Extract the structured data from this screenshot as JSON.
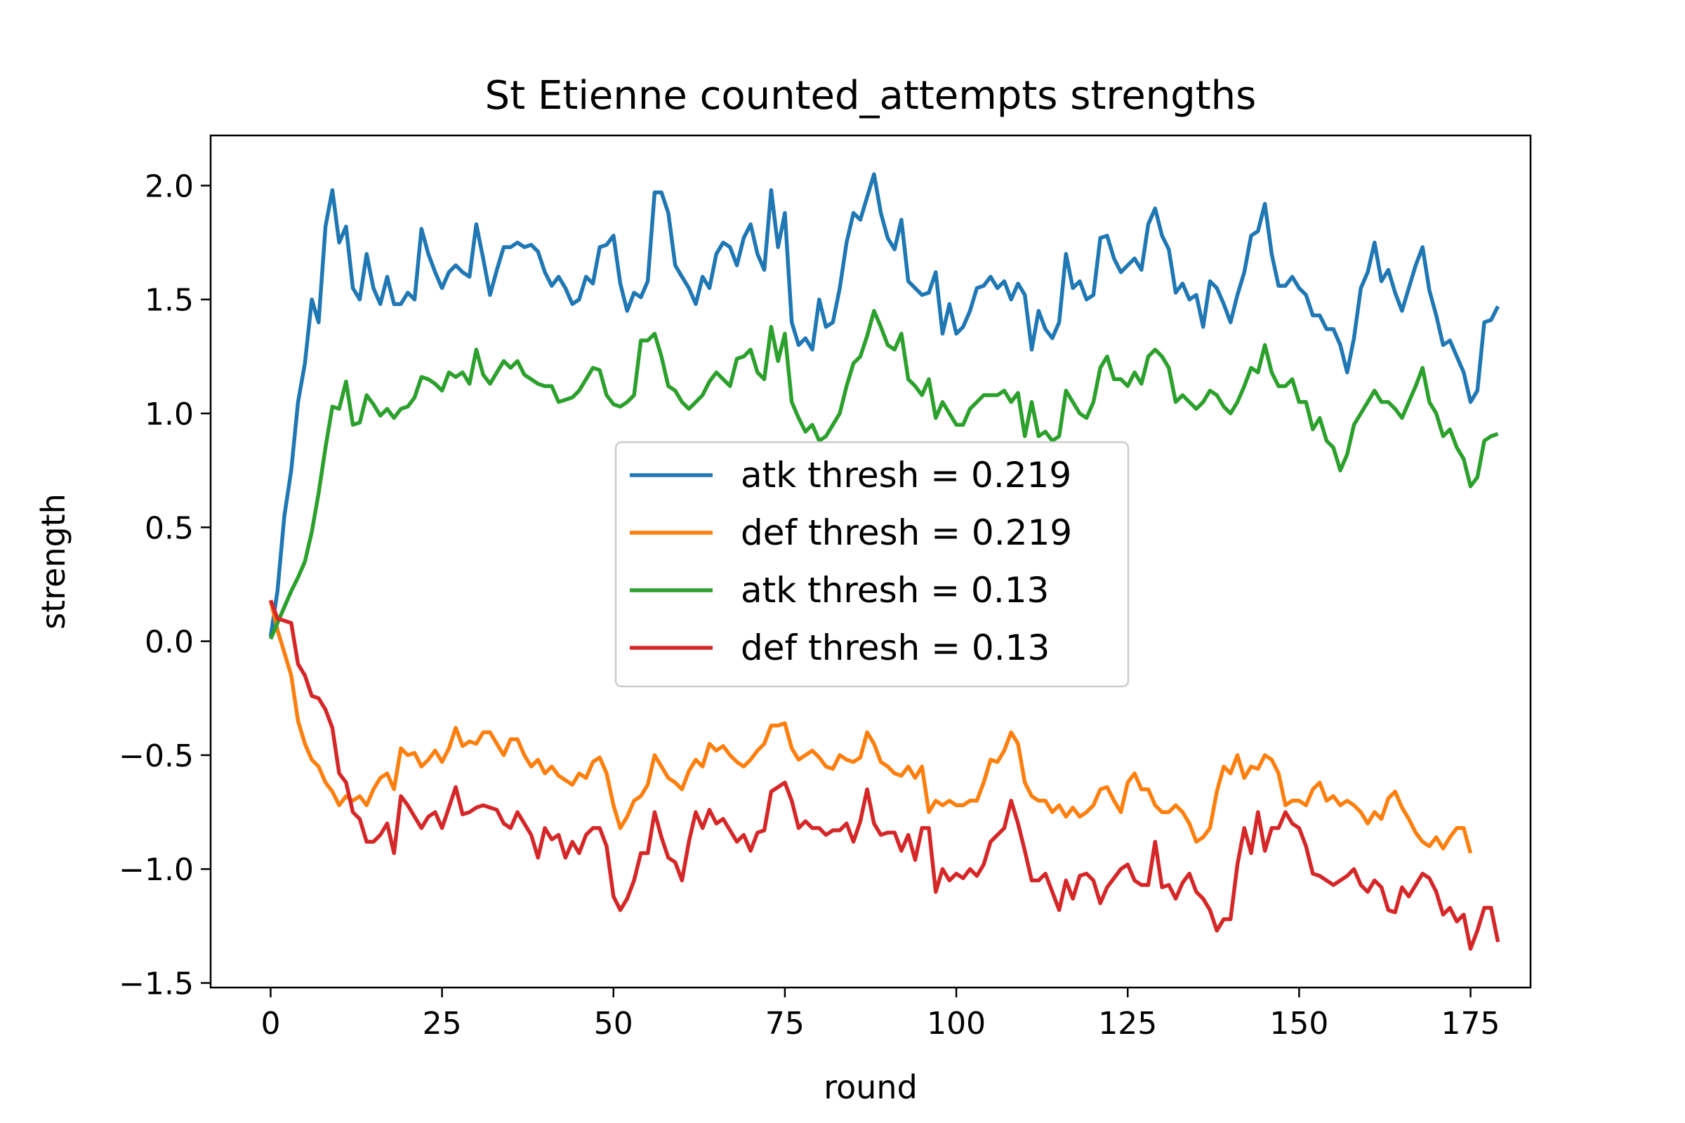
{
  "chart_data": {
    "type": "line",
    "title": "St Etienne counted_attempts strengths",
    "xlabel": "round",
    "ylabel": "strength",
    "xlim": [
      -8.75,
      183.75
    ],
    "ylim": [
      -1.52,
      2.22
    ],
    "xticks": [
      0,
      25,
      50,
      75,
      100,
      125,
      150,
      175
    ],
    "xtick_labels": [
      "0",
      "25",
      "50",
      "75",
      "100",
      "125",
      "150",
      "175"
    ],
    "yticks": [
      -1.5,
      -1.0,
      -0.5,
      0.0,
      0.5,
      1.0,
      1.5,
      2.0
    ],
    "ytick_labels": [
      "−1.5",
      "−1.0",
      "−0.5",
      "0.0",
      "0.5",
      "1.0",
      "1.5",
      "2.0"
    ],
    "grid": false,
    "legend_position": "center",
    "series": [
      {
        "name": "atk thresh = 0.219",
        "color": "#1f77b4",
        "x_start": 0,
        "x_step": 1,
        "y": [
          0.02,
          0.22,
          0.55,
          0.75,
          1.05,
          1.22,
          1.5,
          1.4,
          1.82,
          1.98,
          1.75,
          1.82,
          1.55,
          1.5,
          1.7,
          1.55,
          1.48,
          1.6,
          1.48,
          1.48,
          1.53,
          1.5,
          1.81,
          1.7,
          1.62,
          1.55,
          1.62,
          1.65,
          1.62,
          1.6,
          1.83,
          1.68,
          1.52,
          1.63,
          1.73,
          1.73,
          1.75,
          1.73,
          1.74,
          1.71,
          1.62,
          1.56,
          1.6,
          1.55,
          1.48,
          1.5,
          1.6,
          1.57,
          1.73,
          1.74,
          1.78,
          1.57,
          1.45,
          1.53,
          1.51,
          1.58,
          1.97,
          1.97,
          1.88,
          1.65,
          1.6,
          1.55,
          1.48,
          1.6,
          1.55,
          1.7,
          1.75,
          1.73,
          1.65,
          1.77,
          1.83,
          1.7,
          1.63,
          1.98,
          1.73,
          1.88,
          1.4,
          1.3,
          1.33,
          1.28,
          1.5,
          1.38,
          1.4,
          1.55,
          1.75,
          1.88,
          1.85,
          1.95,
          2.05,
          1.88,
          1.77,
          1.72,
          1.85,
          1.58,
          1.55,
          1.52,
          1.53,
          1.62,
          1.35,
          1.48,
          1.35,
          1.38,
          1.45,
          1.55,
          1.56,
          1.6,
          1.55,
          1.58,
          1.5,
          1.57,
          1.52,
          1.28,
          1.45,
          1.37,
          1.33,
          1.4,
          1.7,
          1.55,
          1.58,
          1.5,
          1.52,
          1.77,
          1.78,
          1.68,
          1.62,
          1.65,
          1.68,
          1.63,
          1.83,
          1.9,
          1.78,
          1.72,
          1.53,
          1.57,
          1.5,
          1.52,
          1.38,
          1.58,
          1.55,
          1.48,
          1.4,
          1.52,
          1.62,
          1.78,
          1.8,
          1.92,
          1.7,
          1.56,
          1.56,
          1.6,
          1.55,
          1.52,
          1.43,
          1.43,
          1.37,
          1.37,
          1.3,
          1.18,
          1.33,
          1.55,
          1.62,
          1.75,
          1.58,
          1.63,
          1.53,
          1.45,
          1.55,
          1.65,
          1.73,
          1.54,
          1.43,
          1.3,
          1.32,
          1.25,
          1.18,
          1.05,
          1.1,
          1.4,
          1.41,
          1.47
        ]
      },
      {
        "name": "def thresh = 0.219",
        "color": "#ff7f0e",
        "x_start": 0,
        "x_step": 1,
        "y": [
          0.18,
          0.05,
          -0.05,
          -0.15,
          -0.35,
          -0.45,
          -0.52,
          -0.55,
          -0.62,
          -0.66,
          -0.72,
          -0.68,
          -0.7,
          -0.68,
          -0.72,
          -0.65,
          -0.6,
          -0.58,
          -0.65,
          -0.47,
          -0.5,
          -0.49,
          -0.55,
          -0.52,
          -0.48,
          -0.53,
          -0.47,
          -0.38,
          -0.46,
          -0.44,
          -0.45,
          -0.4,
          -0.4,
          -0.45,
          -0.5,
          -0.43,
          -0.43,
          -0.5,
          -0.55,
          -0.52,
          -0.58,
          -0.55,
          -0.59,
          -0.61,
          -0.63,
          -0.58,
          -0.6,
          -0.53,
          -0.51,
          -0.58,
          -0.72,
          -0.82,
          -0.77,
          -0.7,
          -0.68,
          -0.63,
          -0.5,
          -0.55,
          -0.6,
          -0.62,
          -0.65,
          -0.57,
          -0.52,
          -0.55,
          -0.45,
          -0.48,
          -0.46,
          -0.5,
          -0.53,
          -0.55,
          -0.52,
          -0.48,
          -0.45,
          -0.37,
          -0.37,
          -0.36,
          -0.47,
          -0.52,
          -0.5,
          -0.48,
          -0.51,
          -0.55,
          -0.56,
          -0.5,
          -0.52,
          -0.53,
          -0.51,
          -0.4,
          -0.45,
          -0.53,
          -0.55,
          -0.58,
          -0.59,
          -0.55,
          -0.6,
          -0.55,
          -0.75,
          -0.7,
          -0.72,
          -0.7,
          -0.72,
          -0.72,
          -0.7,
          -0.7,
          -0.62,
          -0.52,
          -0.53,
          -0.48,
          -0.4,
          -0.45,
          -0.62,
          -0.68,
          -0.7,
          -0.7,
          -0.75,
          -0.72,
          -0.77,
          -0.73,
          -0.77,
          -0.75,
          -0.72,
          -0.65,
          -0.64,
          -0.7,
          -0.75,
          -0.62,
          -0.58,
          -0.65,
          -0.65,
          -0.72,
          -0.75,
          -0.75,
          -0.72,
          -0.75,
          -0.8,
          -0.88,
          -0.86,
          -0.82,
          -0.66,
          -0.55,
          -0.58,
          -0.5,
          -0.6,
          -0.55,
          -0.56,
          -0.5,
          -0.52,
          -0.58,
          -0.72,
          -0.7,
          -0.7,
          -0.72,
          -0.65,
          -0.62,
          -0.7,
          -0.68,
          -0.72,
          -0.7,
          -0.72,
          -0.75,
          -0.8,
          -0.75,
          -0.78,
          -0.69,
          -0.66,
          -0.73,
          -0.78,
          -0.84,
          -0.88,
          -0.9,
          -0.86,
          -0.91,
          -0.86,
          -0.82,
          -0.82,
          -0.93
        ]
      },
      {
        "name": "atk thresh = 0.13",
        "color": "#2ca02c",
        "x_start": 0,
        "x_step": 1,
        "y": [
          0.01,
          0.08,
          0.15,
          0.22,
          0.28,
          0.35,
          0.48,
          0.65,
          0.85,
          1.03,
          1.02,
          1.14,
          0.95,
          0.96,
          1.08,
          1.04,
          0.99,
          1.02,
          0.98,
          1.02,
          1.03,
          1.07,
          1.16,
          1.15,
          1.13,
          1.1,
          1.18,
          1.16,
          1.18,
          1.13,
          1.28,
          1.17,
          1.13,
          1.18,
          1.23,
          1.2,
          1.23,
          1.17,
          1.15,
          1.13,
          1.12,
          1.12,
          1.05,
          1.06,
          1.07,
          1.1,
          1.15,
          1.2,
          1.19,
          1.08,
          1.04,
          1.03,
          1.05,
          1.08,
          1.32,
          1.32,
          1.35,
          1.25,
          1.12,
          1.1,
          1.05,
          1.02,
          1.05,
          1.08,
          1.14,
          1.18,
          1.15,
          1.12,
          1.24,
          1.25,
          1.28,
          1.18,
          1.15,
          1.38,
          1.23,
          1.35,
          1.05,
          0.98,
          0.92,
          0.95,
          0.88,
          0.9,
          0.95,
          1.0,
          1.12,
          1.22,
          1.25,
          1.34,
          1.45,
          1.38,
          1.3,
          1.28,
          1.35,
          1.15,
          1.12,
          1.08,
          1.15,
          0.98,
          1.05,
          1.0,
          0.95,
          0.95,
          1.02,
          1.05,
          1.08,
          1.08,
          1.08,
          1.1,
          1.05,
          1.09,
          0.9,
          1.05,
          0.9,
          0.92,
          0.88,
          0.9,
          1.1,
          1.05,
          1.0,
          0.98,
          1.05,
          1.2,
          1.25,
          1.15,
          1.15,
          1.12,
          1.18,
          1.13,
          1.25,
          1.28,
          1.25,
          1.2,
          1.05,
          1.08,
          1.05,
          1.02,
          1.05,
          1.1,
          1.08,
          1.03,
          1.0,
          1.05,
          1.12,
          1.2,
          1.18,
          1.3,
          1.18,
          1.12,
          1.12,
          1.15,
          1.05,
          1.05,
          0.93,
          0.98,
          0.88,
          0.85,
          0.75,
          0.82,
          0.95,
          1.0,
          1.05,
          1.1,
          1.05,
          1.05,
          1.02,
          0.98,
          1.05,
          1.12,
          1.2,
          1.05,
          1.0,
          0.9,
          0.93,
          0.85,
          0.8,
          0.68,
          0.72,
          0.88,
          0.9,
          0.91
        ]
      },
      {
        "name": "def thresh = 0.13",
        "color": "#d62728",
        "x_start": 0,
        "x_step": 1,
        "y": [
          0.18,
          0.1,
          0.09,
          0.08,
          -0.1,
          -0.15,
          -0.24,
          -0.25,
          -0.3,
          -0.38,
          -0.58,
          -0.62,
          -0.75,
          -0.78,
          -0.88,
          -0.88,
          -0.85,
          -0.8,
          -0.93,
          -0.68,
          -0.72,
          -0.77,
          -0.82,
          -0.77,
          -0.75,
          -0.82,
          -0.73,
          -0.64,
          -0.76,
          -0.75,
          -0.73,
          -0.72,
          -0.73,
          -0.74,
          -0.8,
          -0.82,
          -0.75,
          -0.8,
          -0.85,
          -0.95,
          -0.82,
          -0.87,
          -0.85,
          -0.95,
          -0.88,
          -0.93,
          -0.85,
          -0.82,
          -0.82,
          -0.9,
          -1.12,
          -1.18,
          -1.13,
          -1.05,
          -0.93,
          -0.93,
          -0.75,
          -0.86,
          -0.95,
          -0.97,
          -1.05,
          -0.88,
          -0.75,
          -0.82,
          -0.74,
          -0.8,
          -0.78,
          -0.83,
          -0.88,
          -0.85,
          -0.92,
          -0.84,
          -0.83,
          -0.66,
          -0.64,
          -0.62,
          -0.7,
          -0.82,
          -0.79,
          -0.82,
          -0.82,
          -0.85,
          -0.83,
          -0.83,
          -0.8,
          -0.88,
          -0.79,
          -0.65,
          -0.8,
          -0.85,
          -0.84,
          -0.84,
          -0.92,
          -0.85,
          -0.96,
          -0.82,
          -0.82,
          -1.1,
          -1.0,
          -1.05,
          -1.02,
          -1.04,
          -1.0,
          -1.03,
          -0.98,
          -0.88,
          -0.85,
          -0.82,
          -0.7,
          -0.8,
          -0.92,
          -1.05,
          -1.05,
          -1.02,
          -1.1,
          -1.18,
          -1.05,
          -1.13,
          -1.03,
          -1.02,
          -1.05,
          -1.15,
          -1.08,
          -1.04,
          -1.0,
          -0.98,
          -1.05,
          -1.07,
          -1.07,
          -0.88,
          -1.08,
          -1.07,
          -1.13,
          -1.06,
          -1.02,
          -1.1,
          -1.13,
          -1.18,
          -1.27,
          -1.22,
          -1.22,
          -0.98,
          -0.82,
          -0.93,
          -0.75,
          -0.92,
          -0.82,
          -0.82,
          -0.75,
          -0.8,
          -0.82,
          -0.9,
          -1.02,
          -1.03,
          -1.05,
          -1.07,
          -1.05,
          -1.03,
          -1.0,
          -1.07,
          -1.1,
          -1.05,
          -1.08,
          -1.18,
          -1.19,
          -1.08,
          -1.12,
          -1.07,
          -1.02,
          -1.04,
          -1.1,
          -1.2,
          -1.17,
          -1.23,
          -1.2,
          -1.35,
          -1.27,
          -1.17,
          -1.17,
          -1.32
        ]
      }
    ]
  }
}
